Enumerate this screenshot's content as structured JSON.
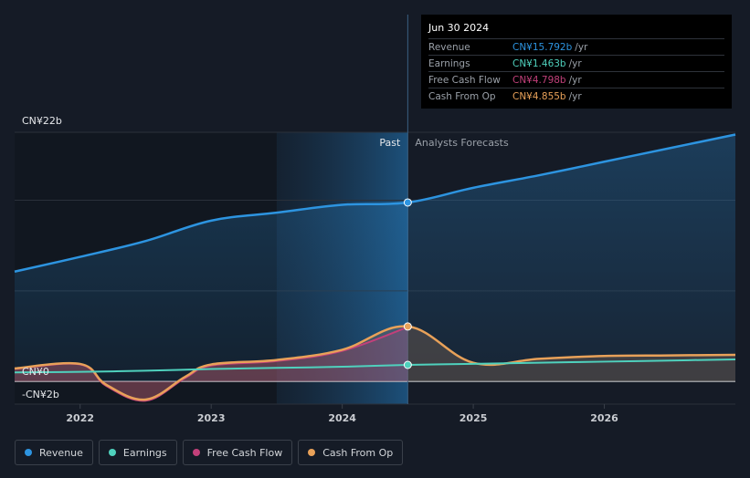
{
  "chart_data": {
    "type": "line",
    "y_axis": {
      "top_label": "CN¥22b",
      "zero_label": "CN¥0",
      "bottom_label": "-CN¥2b",
      "ylim": [
        -2,
        22
      ]
    },
    "x_axis": {
      "ticks": [
        "2022",
        "2023",
        "2024",
        "2025",
        "2026"
      ]
    },
    "divider": {
      "past_label": "Past",
      "forecast_label": "Analysts Forecasts",
      "date": 2024.5
    },
    "series": [
      {
        "name": "Revenue",
        "color": "#2d94e0",
        "x": [
          2021.5,
          2022.0,
          2022.5,
          2023.0,
          2023.5,
          2024.0,
          2024.5,
          2025.0,
          2025.5,
          2026.0,
          2026.5,
          2027.0
        ],
        "values": [
          9.7,
          11.0,
          12.4,
          14.2,
          14.9,
          15.6,
          15.8,
          17.1,
          18.2,
          19.4,
          20.6,
          21.8
        ]
      },
      {
        "name": "Earnings",
        "color": "#4fd1bd",
        "x": [
          2021.5,
          2022.0,
          2022.5,
          2023.0,
          2023.5,
          2024.0,
          2024.5,
          2025.0,
          2025.5,
          2026.0,
          2026.5,
          2027.0
        ],
        "values": [
          0.8,
          0.85,
          0.95,
          1.1,
          1.2,
          1.3,
          1.463,
          1.55,
          1.65,
          1.75,
          1.85,
          1.95
        ]
      },
      {
        "name": "Free Cash Flow",
        "color": "#c2407a",
        "x": [
          2021.5,
          2022.0,
          2022.2,
          2022.5,
          2022.8,
          2023.0,
          2023.5,
          2024.0,
          2024.5
        ],
        "values": [
          1.1,
          1.5,
          -0.4,
          -1.7,
          0.3,
          1.4,
          1.8,
          2.7,
          4.798
        ]
      },
      {
        "name": "Cash From Op",
        "color": "#e8a159",
        "x": [
          2021.5,
          2022.0,
          2022.2,
          2022.5,
          2022.8,
          2023.0,
          2023.5,
          2024.0,
          2024.5,
          2025.0,
          2025.5,
          2026.0,
          2026.5,
          2027.0
        ],
        "values": [
          1.15,
          1.55,
          -0.3,
          -1.6,
          0.4,
          1.5,
          1.9,
          2.8,
          4.855,
          1.65,
          2.0,
          2.25,
          2.3,
          2.35
        ]
      }
    ],
    "grid": true,
    "legend_position": "bottom-left"
  },
  "tooltip": {
    "date": "Jun 30 2024",
    "rows": [
      {
        "label": "Revenue",
        "value": "CN¥15.792b",
        "unit": "/yr",
        "color": "#2d94e0"
      },
      {
        "label": "Earnings",
        "value": "CN¥1.463b",
        "unit": "/yr",
        "color": "#4fd1bd"
      },
      {
        "label": "Free Cash Flow",
        "value": "CN¥4.798b",
        "unit": "/yr",
        "color": "#c2407a"
      },
      {
        "label": "Cash From Op",
        "value": "CN¥4.855b",
        "unit": "/yr",
        "color": "#e8a159"
      }
    ]
  },
  "legend": [
    {
      "label": "Revenue",
      "color": "#2d94e0"
    },
    {
      "label": "Earnings",
      "color": "#4fd1bd"
    },
    {
      "label": "Free Cash Flow",
      "color": "#c2407a"
    },
    {
      "label": "Cash From Op",
      "color": "#e8a159"
    }
  ]
}
